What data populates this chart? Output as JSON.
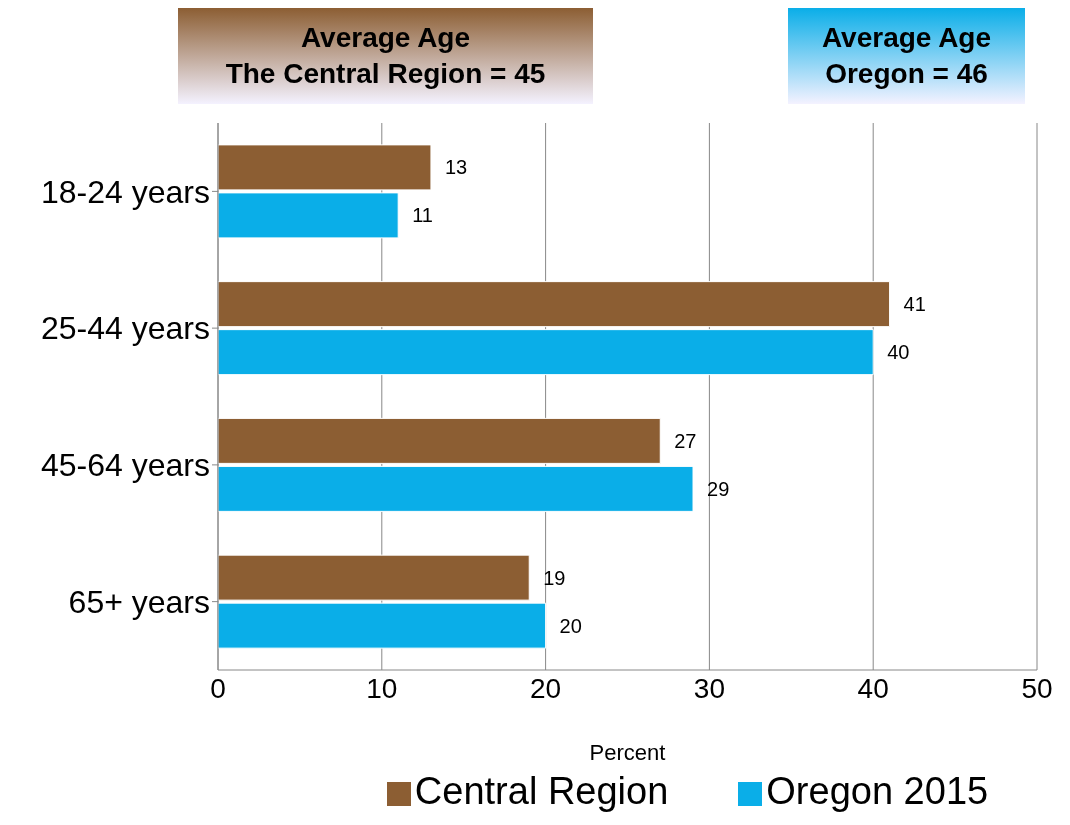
{
  "chart_data": {
    "type": "bar",
    "orientation": "horizontal",
    "xlabel": "Percent",
    "categories": [
      "18-24 years",
      "25-44 years",
      "45-64 years",
      "65+ years"
    ],
    "series": [
      {
        "name": "Central Region",
        "color": "#8c5e33",
        "values": [
          13,
          41,
          27,
          19
        ]
      },
      {
        "name": "Oregon 2015",
        "color": "#0aaee8",
        "values": [
          11,
          40,
          29,
          20
        ]
      }
    ],
    "xlim": [
      0,
      50
    ],
    "xticks": [
      0,
      10,
      20,
      30,
      40,
      50
    ],
    "grid": "x",
    "legend": "bottom",
    "data_labels": true,
    "annotations": [
      "Average Age\nThe Central Region = 45",
      "Average Age\nOregon = 46"
    ]
  }
}
